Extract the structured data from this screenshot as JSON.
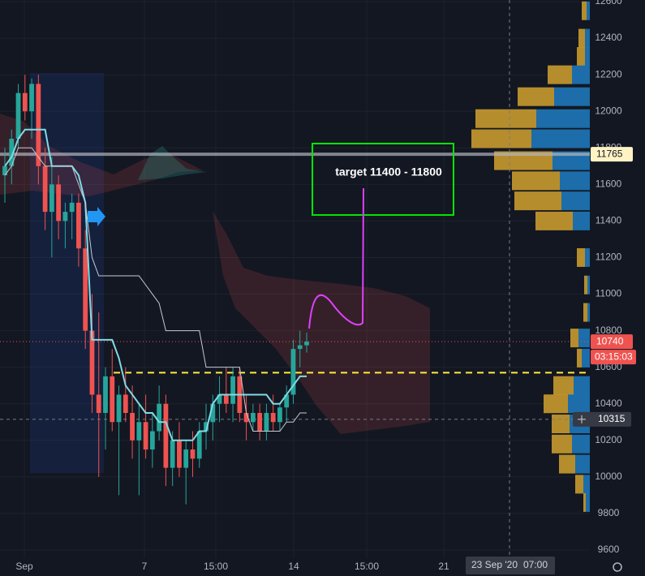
{
  "chart_data": {
    "type": "candlestick",
    "ylim": [
      9600,
      12600
    ],
    "yticks": [
      9600,
      9800,
      10000,
      10200,
      10400,
      10600,
      10800,
      11000,
      11200,
      11400,
      11600,
      11800,
      12000,
      12200,
      12400,
      12600
    ],
    "x_labels": [
      "Sep",
      "7",
      "15:00",
      "14",
      "15:00",
      "21"
    ],
    "crosshair_date": "23 Sep '20",
    "crosshair_time": "07:00",
    "up_color": "#26a69a",
    "down_color": "#ef5350",
    "ohlc": [
      [
        11650,
        11800,
        11500,
        11700
      ],
      [
        11700,
        11900,
        11600,
        11850
      ],
      [
        11850,
        12150,
        11800,
        12100
      ],
      [
        12100,
        12200,
        11950,
        12000
      ],
      [
        12000,
        12180,
        11850,
        12150
      ],
      [
        12150,
        12200,
        11600,
        11700
      ],
      [
        11700,
        11800,
        11350,
        11450
      ],
      [
        11450,
        11750,
        11200,
        11600
      ],
      [
        11600,
        11650,
        11300,
        11400
      ],
      [
        11400,
        11500,
        11250,
        11450
      ],
      [
        11450,
        11550,
        11300,
        11500
      ],
      [
        11500,
        11550,
        11150,
        11250
      ],
      [
        11250,
        11350,
        10700,
        10800
      ],
      [
        10800,
        11000,
        10350,
        10450
      ],
      [
        10450,
        10900,
        10000,
        10350
      ],
      [
        10350,
        10600,
        10150,
        10550
      ],
      [
        10550,
        10700,
        10250,
        10300
      ],
      [
        10300,
        10500,
        9900,
        10450
      ],
      [
        10450,
        10600,
        10300,
        10350
      ],
      [
        10350,
        10500,
        10100,
        10200
      ],
      [
        10200,
        10400,
        9900,
        10300
      ],
      [
        10300,
        10450,
        10100,
        10150
      ],
      [
        10150,
        10350,
        10050,
        10250
      ],
      [
        10250,
        10500,
        10200,
        10400
      ],
      [
        10400,
        10450,
        9950,
        10050
      ],
      [
        10050,
        10250,
        9950,
        10200
      ],
      [
        10200,
        10300,
        10000,
        10050
      ],
      [
        10050,
        10200,
        9850,
        10150
      ],
      [
        10150,
        10250,
        10000,
        10100
      ],
      [
        10100,
        10300,
        10050,
        10250
      ],
      [
        10250,
        10400,
        10150,
        10300
      ],
      [
        10300,
        10450,
        10200,
        10400
      ],
      [
        10400,
        10550,
        10300,
        10450
      ],
      [
        10450,
        10600,
        10350,
        10400
      ],
      [
        10400,
        10600,
        10300,
        10550
      ],
      [
        10550,
        10600,
        10300,
        10350
      ],
      [
        10350,
        10450,
        10200,
        10300
      ],
      [
        10300,
        10400,
        10250,
        10350
      ],
      [
        10350,
        10400,
        10200,
        10250
      ],
      [
        10250,
        10400,
        10200,
        10350
      ],
      [
        10350,
        10450,
        10250,
        10300
      ],
      [
        10300,
        10400,
        10250,
        10380
      ],
      [
        10380,
        10500,
        10300,
        10450
      ],
      [
        10450,
        10750,
        10400,
        10700
      ],
      [
        10700,
        10800,
        10600,
        10720
      ],
      [
        10720,
        10790,
        10680,
        10740
      ]
    ],
    "lines": [
      {
        "color": "#7fdbe6",
        "values": [
          11700,
          11750,
          11850,
          11900,
          11900,
          11900,
          11900,
          11700,
          11700,
          11700,
          11700,
          11650,
          11500,
          10750,
          10750,
          10750,
          10750,
          10650,
          10500,
          10450,
          10400,
          10350,
          10350,
          10300,
          10300,
          10200,
          10200,
          10200,
          10200,
          10250,
          10250,
          10400,
          10450,
          10450,
          10450,
          10450,
          10450,
          10450,
          10450,
          10450,
          10400,
          10400,
          10450,
          10500,
          10550,
          10550
        ]
      },
      {
        "color": "#c8cad1",
        "values": [
          11650,
          11700,
          11800,
          11800,
          11800,
          11750,
          11700,
          11700,
          11700,
          11700,
          11700,
          11600,
          11500,
          11200,
          11100,
          11100,
          11100,
          11100,
          11100,
          11100,
          11100,
          11050,
          11000,
          10950,
          10800,
          10800,
          10800,
          10800,
          10800,
          10800,
          10600,
          10600,
          10600,
          10600,
          10600,
          10600,
          10350,
          10250,
          10250,
          10250,
          10250,
          10250,
          10300,
          10300,
          10350,
          10350
        ]
      }
    ],
    "volume_profile": {
      "gold_color": "#c99a2e",
      "blue_color": "#1e77b8",
      "levels": [
        12550,
        12400,
        12300,
        12200,
        12080,
        11960,
        11850,
        11730,
        11620,
        11510,
        11400,
        11200,
        11050,
        10900,
        10760,
        10650,
        10500,
        10400,
        10290,
        10180,
        10070,
        9960,
        9860
      ],
      "gold": [
        6,
        8,
        10,
        30,
        45,
        75,
        74,
        72,
        59,
        58,
        46,
        10,
        4,
        5,
        10,
        6,
        25,
        30,
        22,
        25,
        20,
        10,
        3
      ],
      "blue": [
        4,
        6,
        6,
        22,
        44,
        66,
        72,
        46,
        37,
        35,
        21,
        6,
        3,
        3,
        14,
        10,
        20,
        27,
        25,
        22,
        18,
        8,
        5
      ]
    },
    "annotation": "target 11400 - 11800",
    "resistance_line": 11765,
    "support_line": 10570,
    "last_price": 10740,
    "countdown": "03:15:03",
    "crosshair_price": 10315
  }
}
